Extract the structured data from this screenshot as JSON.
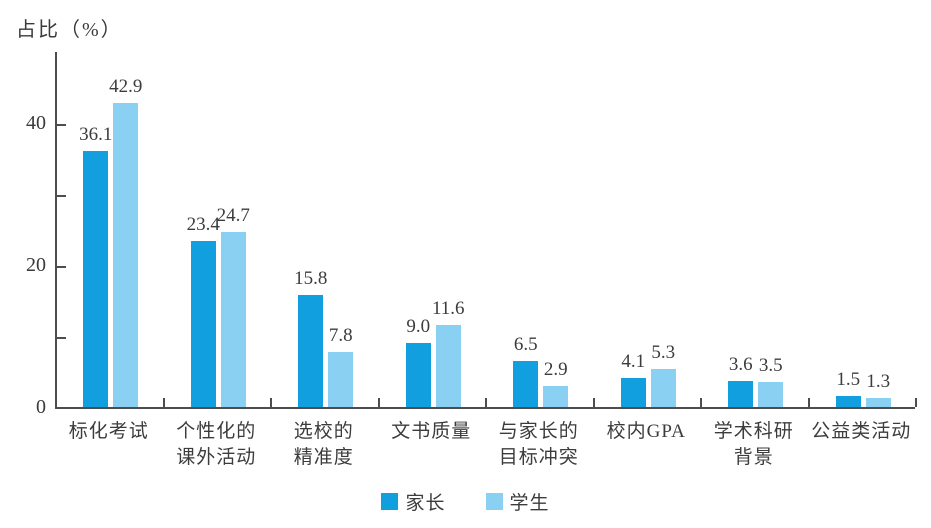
{
  "chart_data": {
    "type": "bar",
    "title": "",
    "ylabel": "占比（%）",
    "xlabel": "",
    "categories": [
      "标化考试",
      "个性化的\n课外活动",
      "选校的\n精准度",
      "文书质量",
      "与家长的\n目标冲突",
      "校内GPA",
      "学术科研\n背景",
      "公益类活动"
    ],
    "series": [
      {
        "name": "家长",
        "color": "#119FE0",
        "values": [
          36.1,
          23.4,
          15.8,
          9.0,
          6.5,
          4.1,
          3.6,
          1.5
        ],
        "labels": [
          "36.1",
          "23.4",
          "15.8",
          "9.0",
          "6.5",
          "4.1",
          "3.6",
          "1.5"
        ]
      },
      {
        "name": "学生",
        "color": "#8AD0F2",
        "values": [
          42.9,
          24.7,
          7.8,
          11.6,
          2.9,
          5.3,
          3.5,
          1.3
        ],
        "labels": [
          "42.9",
          "24.7",
          "7.8",
          "11.6",
          "2.9",
          "5.3",
          "3.5",
          "1.3"
        ]
      }
    ],
    "ylim": [
      0,
      50
    ],
    "yticks_labeled": [
      0,
      20,
      40
    ],
    "yticks_minor": [
      10,
      30
    ],
    "grid": false,
    "legend_position": "bottom",
    "axis_color": "#4d4d4d",
    "text_color": "#3c3c3c"
  }
}
